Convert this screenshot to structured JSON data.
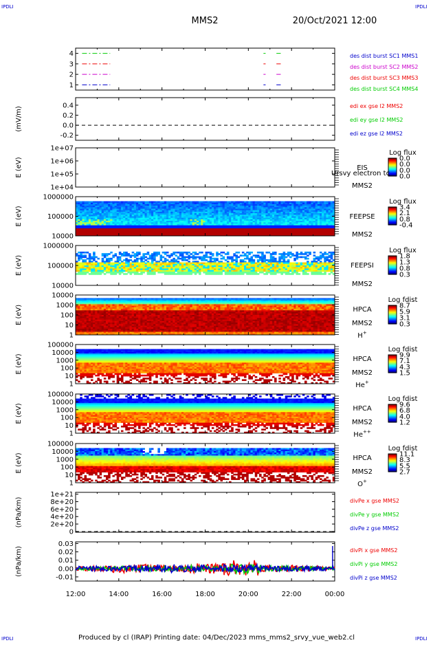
{
  "page": {
    "corner_labels": [
      "IPDLI",
      "IPDLI",
      "IPDLI",
      "IPDLI"
    ],
    "title": "MMS2",
    "date": "20/Oct/2021 12:00",
    "footer": "Produced by cl (IRAP)   Printing date: 04/Dec/2023   mms_mms2_srvy_vue_web2.cl"
  },
  "colors": {
    "red": "#ee0000",
    "green": "#00cc00",
    "blue": "#0000cc",
    "magenta": "#cc00cc",
    "black": "#000000"
  },
  "chart_data": [
    {
      "type": "line",
      "panel": "burst",
      "y_ticks": [
        "4",
        "3",
        "2",
        "1"
      ],
      "ylim": [
        0.5,
        4.5
      ],
      "xlim": [
        0,
        12
      ],
      "x_ticks": [
        "12:00",
        "14:00",
        "16:00",
        "18:00",
        "20:00",
        "22:00",
        "00:00"
      ],
      "series": [
        {
          "name": "des dist burst SC1 MMS1",
          "color": "blue",
          "level": 1,
          "segments": [
            [
              0.3,
              1.6
            ],
            [
              8.7,
              8.8
            ],
            [
              9.3,
              9.5
            ]
          ]
        },
        {
          "name": "des dist burst SC2 MMS2",
          "color": "magenta",
          "level": 2,
          "segments": [
            [
              0.3,
              1.6
            ],
            [
              8.7,
              8.8
            ],
            [
              9.3,
              9.5
            ]
          ]
        },
        {
          "name": "des dist burst SC3 MMS3",
          "color": "red",
          "level": 3,
          "segments": [
            [
              0.3,
              1.6
            ],
            [
              8.7,
              8.8
            ],
            [
              9.3,
              9.5
            ]
          ]
        },
        {
          "name": "des dist burst SC4 MMS4",
          "color": "green",
          "level": 4,
          "segments": [
            [
              0.3,
              1.6
            ],
            [
              8.7,
              8.8
            ],
            [
              9.3,
              9.5
            ]
          ]
        }
      ]
    },
    {
      "type": "line",
      "panel": "edi",
      "ylabel": "(mV/m)",
      "y_ticks": [
        "0.4",
        "0.2",
        "0.0",
        "-0.2"
      ],
      "ylim": [
        -0.3,
        0.55
      ],
      "xlim": [
        0,
        12
      ],
      "x_ticks": [
        "12:00",
        "14:00",
        "16:00",
        "18:00",
        "20:00",
        "22:00",
        "00:00"
      ],
      "zero_line": 0,
      "series": [
        {
          "name": "edi ex gse l2 MMS2",
          "color": "red"
        },
        {
          "name": "edi ey gse l2 MMS2",
          "color": "green"
        },
        {
          "name": "edi ez gse l2 MMS2",
          "color": "blue"
        }
      ]
    },
    {
      "type": "heatmap",
      "panel": "eis",
      "ylabel": "E (eV)",
      "y_ticks": [
        "1e+07",
        "1e+06",
        "1e+05",
        "1e+04"
      ],
      "x_ticks": [
        "12:00",
        "14:00",
        "16:00",
        "18:00",
        "20:00",
        "22:00",
        "00:00"
      ],
      "label_lines": [
        "EIS",
        "MMS2"
      ],
      "overlay": "Ursvy electron tc",
      "colorbar_title": "Log flux",
      "colorbar_ticks": [
        "0.0",
        "0.0",
        "0.0",
        "0.0"
      ],
      "fill": "empty"
    },
    {
      "type": "heatmap",
      "panel": "feepse",
      "ylabel": "E (eV)",
      "y_ticks": [
        "1000000",
        "100000",
        "10000"
      ],
      "x_ticks": [
        "12:00",
        "14:00",
        "16:00",
        "18:00",
        "20:00",
        "22:00",
        "00:00"
      ],
      "label_lines": [
        "FEEPSE",
        "MMS2"
      ],
      "colorbar_title": "Log flux",
      "colorbar_ticks": [
        "3.4",
        "2.1",
        "0.8",
        "-0.4"
      ],
      "fill": "feepse"
    },
    {
      "type": "heatmap",
      "panel": "feepsi",
      "ylabel": "E (eV)",
      "y_ticks": [
        "1000000",
        "100000",
        "10000"
      ],
      "x_ticks": [
        "12:00",
        "14:00",
        "16:00",
        "18:00",
        "20:00",
        "22:00",
        "00:00"
      ],
      "label_lines": [
        "FEEPSI",
        "MMS2"
      ],
      "colorbar_title": "Log flux",
      "colorbar_ticks": [
        "1.8",
        "1.3",
        "0.8",
        "0.3"
      ],
      "fill": "feepsi"
    },
    {
      "type": "heatmap",
      "panel": "hpca-h",
      "ylabel": "E (eV)",
      "y_ticks": [
        "10000",
        "1000",
        "100",
        "10",
        "1"
      ],
      "x_ticks": [
        "12:00",
        "14:00",
        "16:00",
        "18:00",
        "20:00",
        "22:00",
        "00:00"
      ],
      "label_lines": [
        "HPCA",
        "MMS2",
        "H+"
      ],
      "colorbar_title": "Log fdist",
      "colorbar_ticks": [
        "8.7",
        "5.9",
        "3.1",
        "0.3"
      ],
      "fill": "hpca_h"
    },
    {
      "type": "heatmap",
      "panel": "hpca-he",
      "ylabel": "E (eV)",
      "y_ticks": [
        "100000",
        "10000",
        "1000",
        "100",
        "10",
        "1"
      ],
      "x_ticks": [
        "12:00",
        "14:00",
        "16:00",
        "18:00",
        "20:00",
        "22:00",
        "00:00"
      ],
      "label_lines": [
        "HPCA",
        "MMS2",
        "He+"
      ],
      "colorbar_title": "Log fdist",
      "colorbar_ticks": [
        "9.9",
        "7.1",
        "4.3",
        "1.5"
      ],
      "fill": "hpca_he"
    },
    {
      "type": "heatmap",
      "panel": "hpca-hepp",
      "ylabel": "E (eV)",
      "y_ticks": [
        "100000",
        "10000",
        "1000",
        "100",
        "10",
        "1"
      ],
      "x_ticks": [
        "12:00",
        "14:00",
        "16:00",
        "18:00",
        "20:00",
        "22:00",
        "00:00"
      ],
      "label_lines": [
        "HPCA",
        "MMS2",
        "He++"
      ],
      "colorbar_title": "Log fdist",
      "colorbar_ticks": [
        "9.6",
        "6.8",
        "4.0",
        "1.2"
      ],
      "fill": "hpca_hepp"
    },
    {
      "type": "heatmap",
      "panel": "hpca-o",
      "ylabel": "E (eV)",
      "y_ticks": [
        "100000",
        "10000",
        "1000",
        "100",
        "10",
        "1"
      ],
      "x_ticks": [
        "12:00",
        "14:00",
        "16:00",
        "18:00",
        "20:00",
        "22:00",
        "00:00"
      ],
      "label_lines": [
        "HPCA",
        "MMS2",
        "O+"
      ],
      "colorbar_title": "Log fdist",
      "colorbar_ticks": [
        "11.1",
        "8.3",
        "5.5",
        "2.7"
      ],
      "fill": "hpca_o"
    },
    {
      "type": "line",
      "panel": "divpe",
      "ylabel": "(nPa/km)",
      "y_ticks": [
        "1e+21",
        "8e+20",
        "6e+20",
        "4e+20",
        "2e+20",
        "0"
      ],
      "ylim": [
        -2e+19,
        1.05e+21
      ],
      "xlim": [
        0,
        12
      ],
      "x_ticks": [
        "12:00",
        "14:00",
        "16:00",
        "18:00",
        "20:00",
        "22:00",
        "00:00"
      ],
      "zero_line": 0,
      "series": [
        {
          "name": "divPe x gse MMS2",
          "color": "red"
        },
        {
          "name": "divPe y gse MMS2",
          "color": "green"
        },
        {
          "name": "divPe z gse MMS2",
          "color": "blue"
        }
      ]
    },
    {
      "type": "line",
      "panel": "divpi",
      "ylabel": "(nPa/km)",
      "y_ticks": [
        "0.03",
        "0.02",
        "0.01",
        "0.00",
        "-0.01"
      ],
      "ylim": [
        -0.015,
        0.032
      ],
      "xlim": [
        0,
        12
      ],
      "x_ticks": [
        "12:00",
        "14:00",
        "16:00",
        "18:00",
        "20:00",
        "22:00",
        "00:00"
      ],
      "zero_line": 0,
      "series": [
        {
          "name": "divPi x gse MMS2",
          "color": "red",
          "envelope": [
            0.003,
            0.005,
            0.004,
            0.006,
            0.01,
            0.004,
            0.003
          ],
          "baseline": 0.0
        },
        {
          "name": "divPi y gse MMS2",
          "color": "green",
          "envelope": [
            0.002,
            0.003,
            0.003,
            0.004,
            0.006,
            0.003,
            0.002
          ],
          "baseline": 0.0
        },
        {
          "name": "divPi z gse MMS2",
          "color": "blue",
          "envelope": [
            0.003,
            0.004,
            0.005,
            0.004,
            0.005,
            0.003,
            0.003
          ],
          "baseline": 0.0,
          "end_spike": 0.027
        }
      ]
    }
  ]
}
